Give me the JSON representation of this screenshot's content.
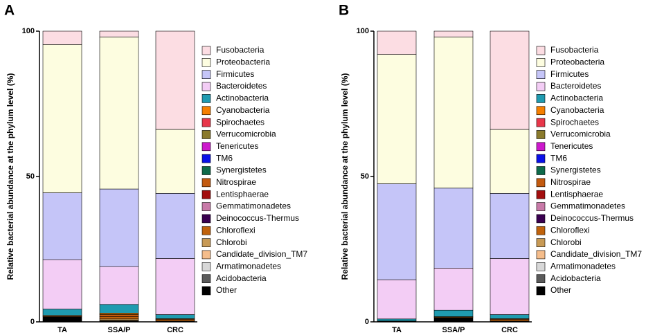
{
  "chart_data": [
    {
      "type": "bar",
      "stacked": true,
      "panel": "A",
      "y_label": "Relative bacterial abundance at the phylum level  (%)",
      "categories": [
        "TA",
        "SSA/P",
        "CRC"
      ],
      "ylim": [
        0,
        100
      ],
      "yticks": [
        0,
        50,
        100
      ],
      "series": [
        {
          "name": "Fusobacteria",
          "color": "#fcdde3",
          "values": [
            4.6,
            2,
            33.8
          ]
        },
        {
          "name": "Proteobacteria",
          "color": "#fdfde0",
          "values": [
            51,
            52.3,
            22
          ]
        },
        {
          "name": "Firmicutes",
          "color": "#c5c5f8",
          "values": [
            23,
            26.7,
            22.4
          ]
        },
        {
          "name": "Bacteroidetes",
          "color": "#f3cdf5",
          "values": [
            17,
            13,
            19.3
          ]
        },
        {
          "name": "Actinobacteria",
          "color": "#1f9bb0",
          "values": [
            2.2,
            3,
            1.4
          ]
        },
        {
          "name": "Cyanobacteria",
          "color": "#f57f00",
          "values": [
            0,
            0.5,
            0
          ]
        },
        {
          "name": "Spirochaetes",
          "color": "#e8374a",
          "values": [
            0,
            0,
            0
          ]
        },
        {
          "name": "Verrucomicrobia",
          "color": "#8a7a2c",
          "values": [
            0,
            0,
            0
          ]
        },
        {
          "name": "Tenericutes",
          "color": "#cc19cc",
          "values": [
            0,
            0,
            0
          ]
        },
        {
          "name": "TM6",
          "color": "#0a10e8",
          "values": [
            0,
            0,
            0
          ]
        },
        {
          "name": "Synergistetes",
          "color": "#0e6a4a",
          "values": [
            0,
            0,
            0
          ]
        },
        {
          "name": "Nitrospirae",
          "color": "#c35a0f",
          "values": [
            0.4,
            0.7,
            0.3
          ]
        },
        {
          "name": "Lentisphaerae",
          "color": "#a30f0f",
          "values": [
            0,
            0,
            0
          ]
        },
        {
          "name": "Gemmatimonadetes",
          "color": "#c87aa8",
          "values": [
            0,
            0,
            0
          ]
        },
        {
          "name": "Deinococcus-Thermus",
          "color": "#3a0050",
          "values": [
            0,
            0,
            0
          ]
        },
        {
          "name": "Chloroflexi",
          "color": "#c0620c",
          "values": [
            0,
            0.8,
            0.5
          ]
        },
        {
          "name": "Chlorobi",
          "color": "#c89a55",
          "values": [
            0,
            0.5,
            0
          ]
        },
        {
          "name": "Candidate_division_TM7",
          "color": "#f5bd8b",
          "values": [
            0,
            0,
            0
          ]
        },
        {
          "name": "Armatimonadetes",
          "color": "#d8d8d8",
          "values": [
            0,
            0,
            0
          ]
        },
        {
          "name": "Acidobacteria",
          "color": "#5a5a5a",
          "values": [
            0,
            0,
            0
          ]
        },
        {
          "name": "Other",
          "color": "#000000",
          "values": [
            1.8,
            0.5,
            0.3
          ]
        }
      ]
    },
    {
      "type": "bar",
      "stacked": true,
      "panel": "B",
      "y_label": "Relative bacterial abundance at the phylum level  (%)",
      "categories": [
        "TA",
        "SSA/P",
        "CRC"
      ],
      "ylim": [
        0,
        100
      ],
      "yticks": [
        0,
        50,
        100
      ],
      "series": [
        {
          "name": "Fusobacteria",
          "color": "#fcdde3",
          "values": [
            8,
            2,
            33.8
          ]
        },
        {
          "name": "Proteobacteria",
          "color": "#fdfde0",
          "values": [
            44.5,
            52,
            22
          ]
        },
        {
          "name": "Firmicutes",
          "color": "#c5c5f8",
          "values": [
            33,
            27.5,
            22.4
          ]
        },
        {
          "name": "Bacteroidetes",
          "color": "#f3cdf5",
          "values": [
            13.5,
            14.5,
            19.3
          ]
        },
        {
          "name": "Actinobacteria",
          "color": "#1f9bb0",
          "values": [
            0.7,
            2.2,
            1.4
          ]
        },
        {
          "name": "Cyanobacteria",
          "color": "#f57f00",
          "values": [
            0,
            0,
            0
          ]
        },
        {
          "name": "Spirochaetes",
          "color": "#e8374a",
          "values": [
            0,
            0,
            0
          ]
        },
        {
          "name": "Verrucomicrobia",
          "color": "#8a7a2c",
          "values": [
            0,
            0,
            0
          ]
        },
        {
          "name": "Tenericutes",
          "color": "#cc19cc",
          "values": [
            0,
            0,
            0
          ]
        },
        {
          "name": "TM6",
          "color": "#0a10e8",
          "values": [
            0,
            0,
            0
          ]
        },
        {
          "name": "Synergistetes",
          "color": "#0e6a4a",
          "values": [
            0,
            0,
            0
          ]
        },
        {
          "name": "Nitrospirae",
          "color": "#c35a0f",
          "values": [
            0,
            0,
            0.3
          ]
        },
        {
          "name": "Lentisphaerae",
          "color": "#a30f0f",
          "values": [
            0,
            0,
            0
          ]
        },
        {
          "name": "Gemmatimonadetes",
          "color": "#c87aa8",
          "values": [
            0,
            0,
            0
          ]
        },
        {
          "name": "Deinococcus-Thermus",
          "color": "#3a0050",
          "values": [
            0,
            0,
            0
          ]
        },
        {
          "name": "Chloroflexi",
          "color": "#c0620c",
          "values": [
            0,
            0.3,
            0.5
          ]
        },
        {
          "name": "Chlorobi",
          "color": "#c89a55",
          "values": [
            0,
            0,
            0
          ]
        },
        {
          "name": "Candidate_division_TM7",
          "color": "#f5bd8b",
          "values": [
            0,
            0,
            0
          ]
        },
        {
          "name": "Armatimonadetes",
          "color": "#d8d8d8",
          "values": [
            0,
            0,
            0
          ]
        },
        {
          "name": "Acidobacteria",
          "color": "#5a5a5a",
          "values": [
            0,
            0,
            0
          ]
        },
        {
          "name": "Other",
          "color": "#000000",
          "values": [
            0.3,
            1.5,
            0.3
          ]
        }
      ]
    }
  ]
}
